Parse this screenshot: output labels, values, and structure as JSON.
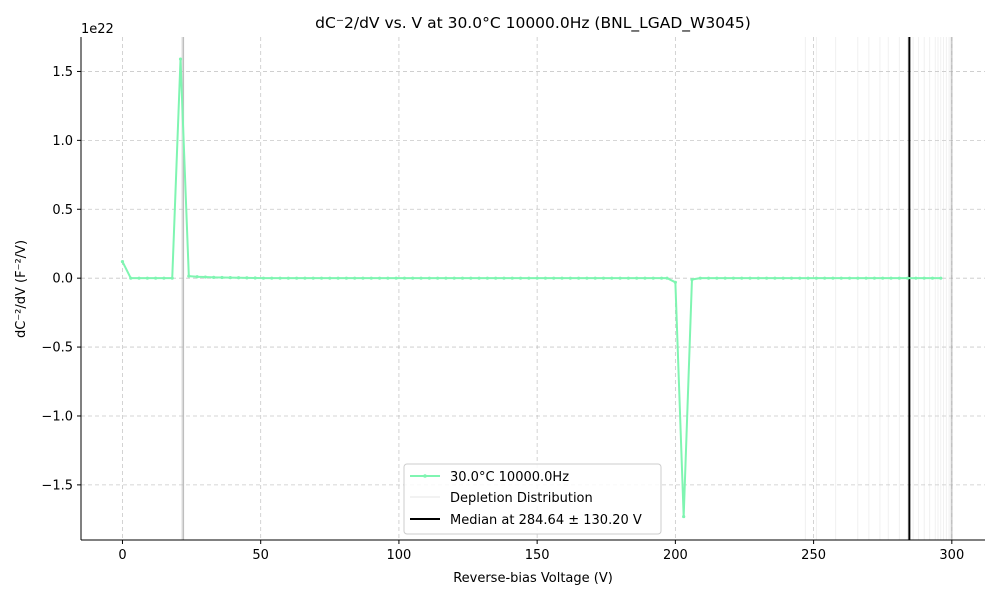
{
  "chart_data": {
    "type": "line",
    "title": "dC⁻2/dV vs. V at 30.0°C 10000.0Hz (BNL_LGAD_W3045)",
    "xlabel": "Reverse-bias Voltage (V)",
    "ylabel": "dC⁻²/dV (F⁻²/V)",
    "y_offset_label": "1e22",
    "xlim": [
      -15,
      312
    ],
    "ylim": [
      -1.9,
      1.75
    ],
    "y_scale": 1e+22,
    "x_ticks": [
      0,
      50,
      100,
      150,
      200,
      250,
      300
    ],
    "x_tick_labels": [
      "0",
      "50",
      "100",
      "150",
      "200",
      "250",
      "300"
    ],
    "y_ticks": [
      -1.5,
      -1.0,
      -0.5,
      0.0,
      0.5,
      1.0,
      1.5
    ],
    "y_tick_labels": [
      "−1.5",
      "−1.0",
      "−0.5",
      "0.0",
      "0.5",
      "1.0",
      "1.5"
    ],
    "grid": true,
    "legend_position": "lower-center",
    "series": [
      {
        "name": "30.0°C 10000.0Hz",
        "color": "#7ff5b1",
        "x": [
          0,
          3,
          6,
          9,
          12,
          15,
          18,
          21,
          24,
          27,
          30,
          33,
          36,
          39,
          42,
          45,
          48,
          51,
          54,
          57,
          60,
          63,
          66,
          69,
          72,
          75,
          78,
          81,
          84,
          87,
          90,
          93,
          96,
          99,
          102,
          105,
          108,
          111,
          114,
          117,
          120,
          123,
          126,
          129,
          132,
          135,
          138,
          141,
          144,
          147,
          150,
          153,
          156,
          159,
          162,
          165,
          168,
          171,
          174,
          177,
          180,
          183,
          186,
          189,
          192,
          195,
          197,
          200,
          203,
          206,
          209,
          212,
          215,
          218,
          221,
          224,
          227,
          230,
          233,
          236,
          239,
          242,
          245,
          248,
          251,
          254,
          257,
          260,
          263,
          266,
          269,
          272,
          275,
          278,
          281,
          284,
          287,
          290,
          293,
          296
        ],
        "y": [
          0.12,
          0.0,
          0.0,
          0.0,
          0.0,
          0.0,
          0.0,
          1.59,
          0.015,
          0.01,
          0.008,
          0.006,
          0.005,
          0.004,
          0.003,
          0.002,
          0.001,
          0.0,
          0.0,
          0.0,
          0.0,
          0.0,
          0.0,
          0.0,
          0.0,
          0.0,
          0.0,
          0.0,
          0.0,
          0.0,
          0.0,
          0.0,
          0.0,
          0.0,
          0.0,
          0.0,
          0.0,
          0.0,
          0.0,
          0.0,
          0.0,
          0.0,
          0.0,
          0.0,
          0.0,
          0.0,
          0.0,
          0.0,
          0.0,
          0.0,
          0.0,
          0.0,
          0.0,
          0.0,
          0.0,
          0.0,
          0.0,
          0.0,
          0.0,
          0.0,
          0.0,
          0.0,
          0.0,
          0.0,
          0.0,
          0.0,
          0.0,
          -0.03,
          -1.73,
          -0.01,
          0.0,
          0.0,
          0.0,
          0.0,
          0.0,
          0.0,
          0.0,
          0.0,
          0.0,
          0.0,
          0.0,
          0.0,
          0.0,
          0.0,
          0.0,
          0.0,
          0.0,
          0.0,
          0.0,
          0.0,
          0.0,
          0.0,
          0.0,
          0.0,
          0.0,
          0.0,
          0.0,
          0.0,
          0.0,
          0.0
        ]
      }
    ],
    "depletion_distribution": {
      "name": "Depletion Distribution",
      "color": "#cccccc",
      "x": [
        21.4,
        21.6,
        21.8,
        22.0,
        22.2,
        247,
        251,
        258,
        266,
        270,
        274,
        277,
        281,
        284,
        286,
        288,
        290,
        292,
        294,
        295,
        296,
        297,
        298,
        299,
        299.5,
        300
      ]
    },
    "median": {
      "name": "Median at 284.64 ± 130.20 V",
      "value": 284.64,
      "color": "#000000"
    }
  }
}
